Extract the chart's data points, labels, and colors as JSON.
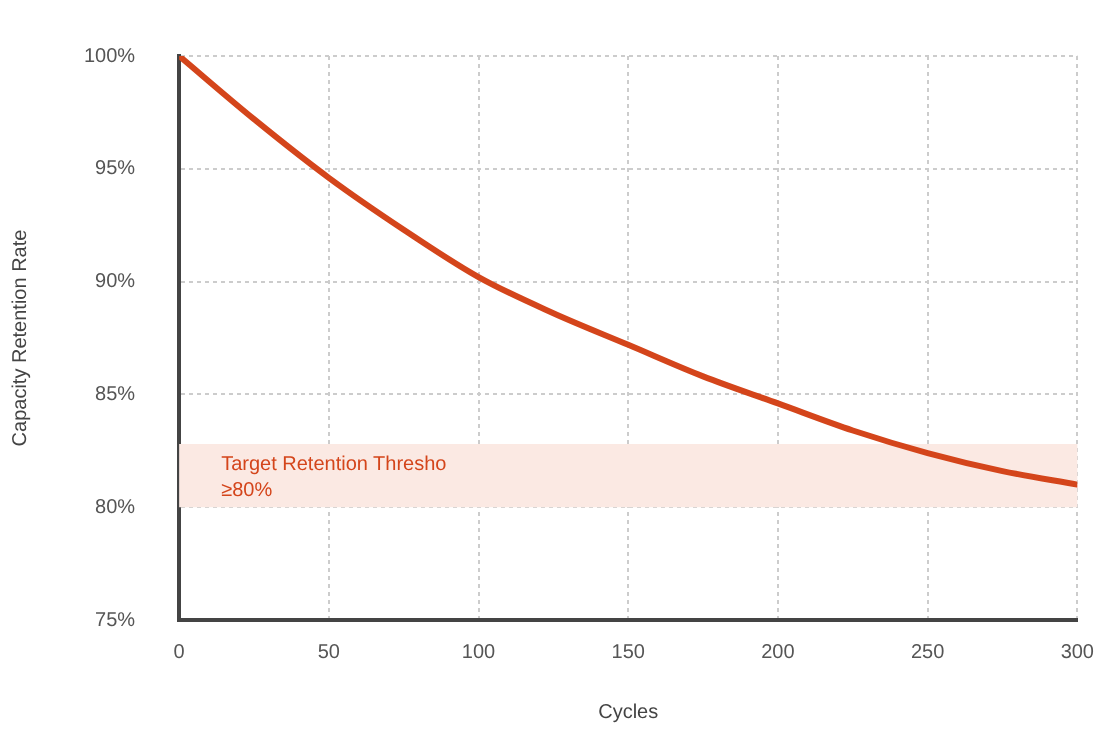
{
  "chart_data": {
    "type": "line",
    "xlabel": "Cycles",
    "ylabel": "Capacity Retention Rate",
    "x": [
      0,
      25,
      50,
      75,
      100,
      125,
      150,
      175,
      200,
      225,
      250,
      275,
      300
    ],
    "series": [
      {
        "color": "#d4451b",
        "values": [
          100,
          97.2,
          94.6,
          92.3,
          90.2,
          88.6,
          87.2,
          85.8,
          84.6,
          83.4,
          82.4,
          81.6,
          81.0
        ]
      }
    ],
    "xlim": [
      0,
      300
    ],
    "xticks": [
      0,
      50,
      100,
      150,
      200,
      250,
      300
    ],
    "ylim": [
      75,
      100
    ],
    "yticks": [
      {
        "value": 75,
        "label": "75%"
      },
      {
        "value": 80,
        "label": "80%"
      },
      {
        "value": 85,
        "label": "85%"
      },
      {
        "value": 90,
        "label": "90%"
      },
      {
        "value": 95,
        "label": "95%"
      },
      {
        "value": 100,
        "label": "100%"
      }
    ],
    "bands": [
      {
        "axis": "y",
        "from": 80,
        "to": 82.8,
        "label": "Target Retention Thresho\n≥80%",
        "color": "#fbe9e3"
      }
    ],
    "grid": true,
    "legend": false,
    "marker": "none",
    "line_style": "solid"
  }
}
